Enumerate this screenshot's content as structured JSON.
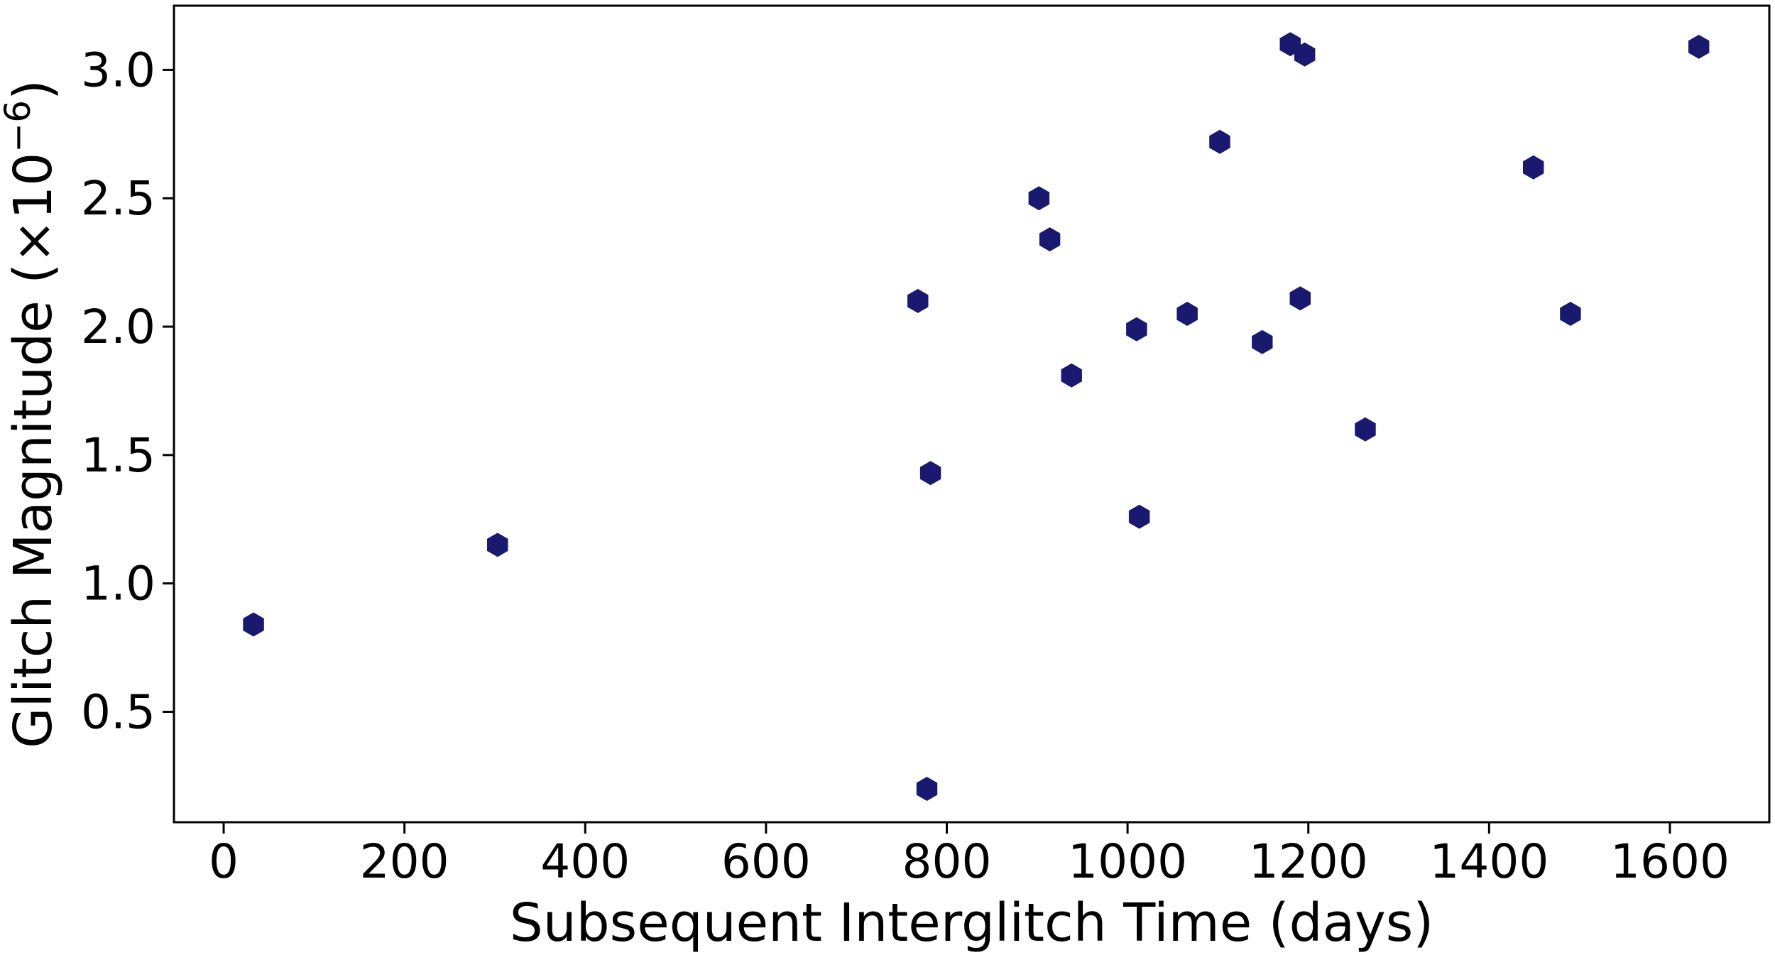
{
  "chart_data": {
    "type": "scatter",
    "title": "",
    "xlabel": "Subsequent Interglitch Time (days)",
    "ylabel": "Glitch Magnitude (×10",
    "ylabel_exponent": "−6",
    "ylabel_close": ")",
    "xlim": [
      -55,
      1710
    ],
    "ylim": [
      0.07,
      3.25
    ],
    "xticks": [
      0,
      200,
      400,
      600,
      800,
      1000,
      1200,
      1400,
      1600
    ],
    "xtick_labels": [
      "0",
      "200",
      "400",
      "600",
      "800",
      "1000",
      "1200",
      "1400",
      "1600"
    ],
    "yticks": [
      0.5,
      1.0,
      1.5,
      2.0,
      2.5,
      3.0
    ],
    "ytick_labels": [
      "0.5",
      "1.0",
      "1.5",
      "2.0",
      "2.5",
      "3.0"
    ],
    "grid": false,
    "marker": "hexagon",
    "marker_color": "#191970",
    "series": [
      {
        "name": "",
        "points": [
          {
            "x": 33,
            "y": 0.84
          },
          {
            "x": 303,
            "y": 1.15
          },
          {
            "x": 768,
            "y": 2.1
          },
          {
            "x": 778,
            "y": 0.2
          },
          {
            "x": 782,
            "y": 1.43
          },
          {
            "x": 902,
            "y": 2.5
          },
          {
            "x": 914,
            "y": 2.34
          },
          {
            "x": 938,
            "y": 1.81
          },
          {
            "x": 1010,
            "y": 1.99
          },
          {
            "x": 1013,
            "y": 1.26
          },
          {
            "x": 1066,
            "y": 2.05
          },
          {
            "x": 1102,
            "y": 2.72
          },
          {
            "x": 1149,
            "y": 1.94
          },
          {
            "x": 1180,
            "y": 3.1
          },
          {
            "x": 1191,
            "y": 2.11
          },
          {
            "x": 1196,
            "y": 3.06
          },
          {
            "x": 1263,
            "y": 1.6
          },
          {
            "x": 1449,
            "y": 2.62
          },
          {
            "x": 1490,
            "y": 2.05
          },
          {
            "x": 1632,
            "y": 3.09
          }
        ]
      }
    ]
  }
}
